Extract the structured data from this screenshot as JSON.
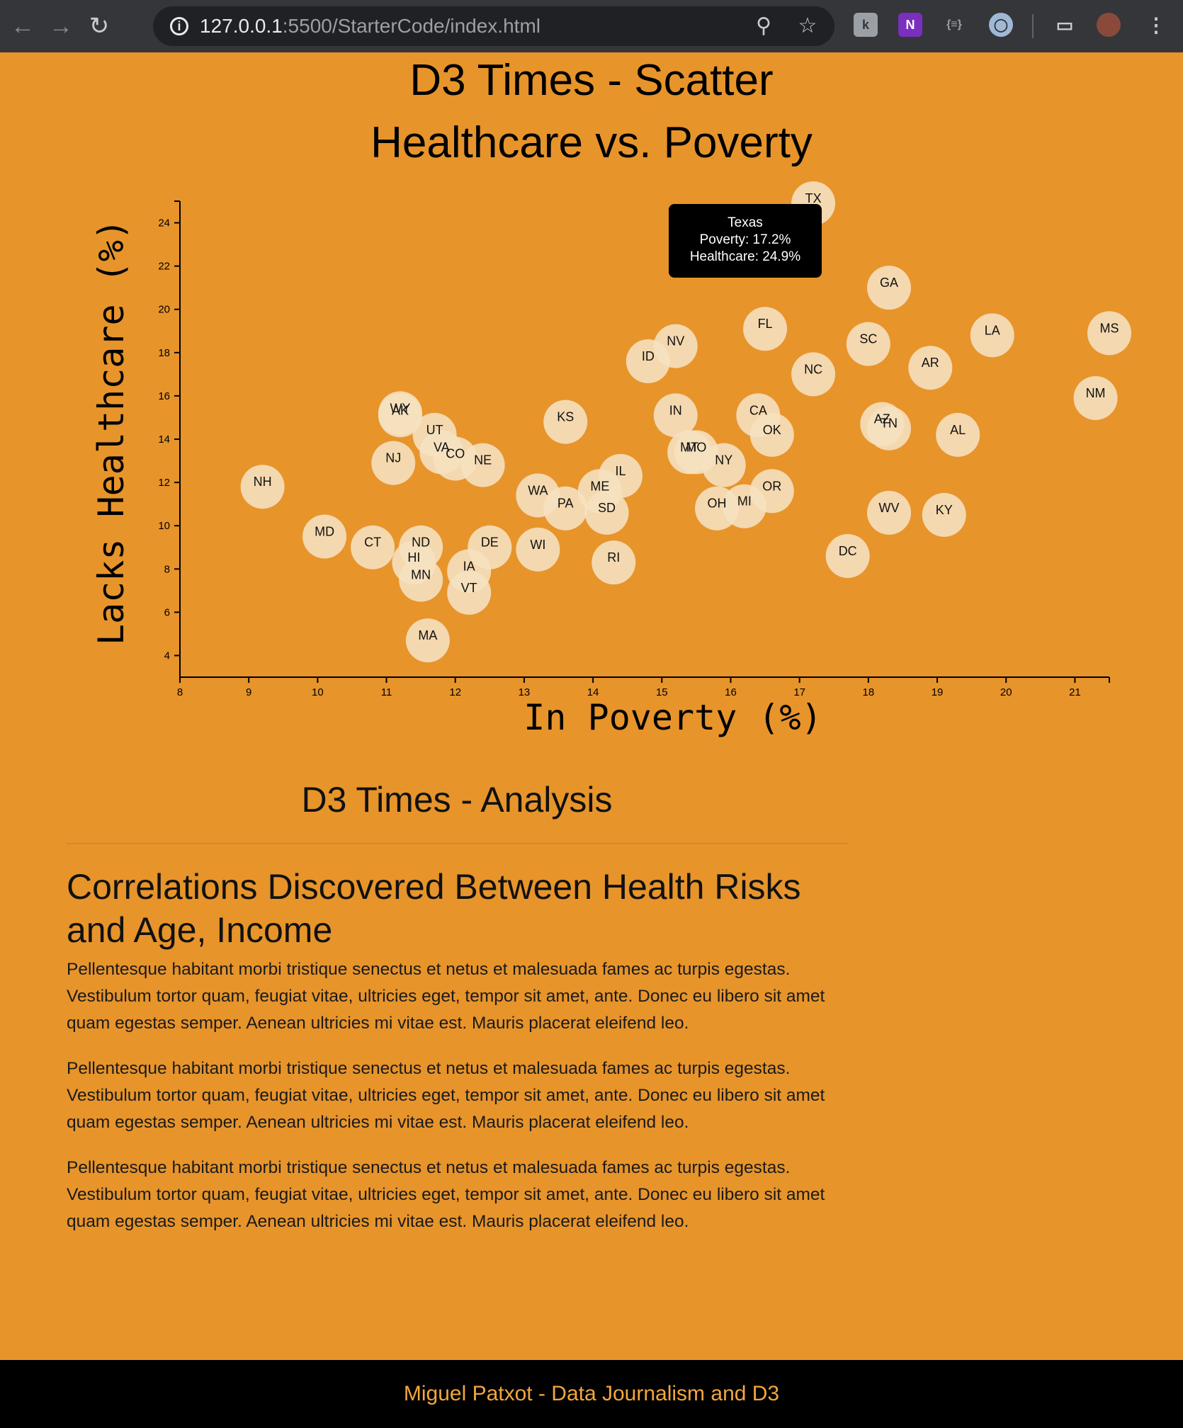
{
  "browser": {
    "url_host": "127.0.0.1",
    "url_path": ":5500/StarterCode/index.html"
  },
  "chart": {
    "title_line1": "D3 Times - Scatter",
    "title_line2": "Healthcare vs. Poverty"
  },
  "chart_data": {
    "type": "scatter",
    "xlabel": "In Poverty (%)",
    "ylabel": "Lacks Healthcare (%)",
    "xlim": [
      8,
      21.5
    ],
    "ylim": [
      3,
      25
    ],
    "x_ticks": [
      8,
      9,
      10,
      11,
      12,
      13,
      14,
      15,
      16,
      17,
      18,
      19,
      20,
      21
    ],
    "y_ticks": [
      4,
      6,
      8,
      10,
      12,
      14,
      16,
      18,
      20,
      22,
      24
    ],
    "colors": {
      "marker": "#f6e1c1",
      "marker_overlap": "#fbf3e7"
    },
    "points": [
      {
        "abbr": "TX",
        "x": 17.2,
        "y": 24.9
      },
      {
        "abbr": "GA",
        "x": 18.3,
        "y": 21.0
      },
      {
        "abbr": "LA",
        "x": 19.8,
        "y": 18.8
      },
      {
        "abbr": "MS",
        "x": 21.5,
        "y": 18.9
      },
      {
        "abbr": "FL",
        "x": 16.5,
        "y": 19.1
      },
      {
        "abbr": "SC",
        "x": 18.0,
        "y": 18.4
      },
      {
        "abbr": "NV",
        "x": 15.2,
        "y": 18.3
      },
      {
        "abbr": "ID",
        "x": 14.8,
        "y": 17.6
      },
      {
        "abbr": "NC",
        "x": 17.2,
        "y": 17.0
      },
      {
        "abbr": "AR",
        "x": 18.9,
        "y": 17.3
      },
      {
        "abbr": "NM",
        "x": 21.3,
        "y": 15.9
      },
      {
        "abbr": "WY",
        "x": 11.2,
        "y": 15.2
      },
      {
        "abbr": "AK",
        "x": 11.2,
        "y": 15.1
      },
      {
        "abbr": "KS",
        "x": 13.6,
        "y": 14.8
      },
      {
        "abbr": "IN",
        "x": 15.2,
        "y": 15.1
      },
      {
        "abbr": "CA",
        "x": 16.4,
        "y": 15.1
      },
      {
        "abbr": "AZ",
        "x": 18.2,
        "y": 14.7
      },
      {
        "abbr": "TN",
        "x": 18.3,
        "y": 14.5
      },
      {
        "abbr": "OK",
        "x": 16.6,
        "y": 14.2
      },
      {
        "abbr": "AL",
        "x": 19.3,
        "y": 14.2
      },
      {
        "abbr": "UT",
        "x": 11.7,
        "y": 14.2
      },
      {
        "abbr": "VA",
        "x": 11.8,
        "y": 13.4
      },
      {
        "abbr": "CO",
        "x": 12.0,
        "y": 13.1
      },
      {
        "abbr": "NE",
        "x": 12.4,
        "y": 12.8
      },
      {
        "abbr": "NJ",
        "x": 11.1,
        "y": 12.9
      },
      {
        "abbr": "MT",
        "x": 15.4,
        "y": 13.4
      },
      {
        "abbr": "MO",
        "x": 15.5,
        "y": 13.4
      },
      {
        "abbr": "NY",
        "x": 15.9,
        "y": 12.8
      },
      {
        "abbr": "IL",
        "x": 14.4,
        "y": 12.3
      },
      {
        "abbr": "NH",
        "x": 9.2,
        "y": 11.8
      },
      {
        "abbr": "ME",
        "x": 14.1,
        "y": 11.6
      },
      {
        "abbr": "WA",
        "x": 13.2,
        "y": 11.4
      },
      {
        "abbr": "OR",
        "x": 16.6,
        "y": 11.6
      },
      {
        "abbr": "PA",
        "x": 13.6,
        "y": 10.8
      },
      {
        "abbr": "SD",
        "x": 14.2,
        "y": 10.6
      },
      {
        "abbr": "OH",
        "x": 15.8,
        "y": 10.8
      },
      {
        "abbr": "MI",
        "x": 16.2,
        "y": 10.9
      },
      {
        "abbr": "WV",
        "x": 18.3,
        "y": 10.6
      },
      {
        "abbr": "KY",
        "x": 19.1,
        "y": 10.5
      },
      {
        "abbr": "MD",
        "x": 10.1,
        "y": 9.5
      },
      {
        "abbr": "CT",
        "x": 10.8,
        "y": 9.0
      },
      {
        "abbr": "ND",
        "x": 11.5,
        "y": 9.0
      },
      {
        "abbr": "DE",
        "x": 12.5,
        "y": 9.0
      },
      {
        "abbr": "WI",
        "x": 13.2,
        "y": 8.9
      },
      {
        "abbr": "HI",
        "x": 11.4,
        "y": 8.3
      },
      {
        "abbr": "RI",
        "x": 14.3,
        "y": 8.3
      },
      {
        "abbr": "DC",
        "x": 17.7,
        "y": 8.6
      },
      {
        "abbr": "IA",
        "x": 12.2,
        "y": 7.9
      },
      {
        "abbr": "MN",
        "x": 11.5,
        "y": 7.5
      },
      {
        "abbr": "VT",
        "x": 12.2,
        "y": 6.9
      },
      {
        "abbr": "MA",
        "x": 11.6,
        "y": 4.7
      }
    ],
    "tooltip": {
      "name": "Texas",
      "line1": "Poverty: 17.2%",
      "line2": "Healthcare: 24.9%"
    }
  },
  "analysis": {
    "title": "D3 Times - Analysis",
    "heading": "Correlations Discovered Between Health Risks and Age, Income",
    "paragraphs": [
      "Pellentesque habitant morbi tristique senectus et netus et malesuada fames ac turpis egestas. Vestibulum tortor quam, feugiat vitae, ultricies eget, tempor sit amet, ante. Donec eu libero sit amet quam egestas semper. Aenean ultricies mi vitae est. Mauris placerat eleifend leo.",
      "Pellentesque habitant morbi tristique senectus et netus et malesuada fames ac turpis egestas. Vestibulum tortor quam, feugiat vitae, ultricies eget, tempor sit amet, ante. Donec eu libero sit amet quam egestas semper. Aenean ultricies mi vitae est. Mauris placerat eleifend leo.",
      "Pellentesque habitant morbi tristique senectus et netus et malesuada fames ac turpis egestas. Vestibulum tortor quam, feugiat vitae, ultricies eget, tempor sit amet, ante. Donec eu libero sit amet quam egestas semper. Aenean ultricies mi vitae est. Mauris placerat eleifend leo."
    ]
  },
  "footer": {
    "text": "Miguel Patxot - Data Journalism and D3"
  }
}
